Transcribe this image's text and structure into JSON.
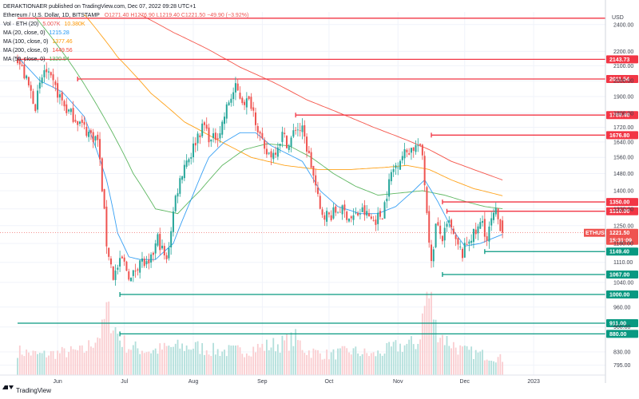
{
  "header": {
    "publisher_line": "DERAKTIONAER published on TradingView.com, Dec 07, 2022 09:28 UTC+1",
    "symbol_line": "Ethereum / U.S. Dollar, 1D, BITSTAMP",
    "ohlc": "O1271.40 H1276.90 L1219.40 C1221.50 −49.90 (−3.92%)",
    "indicators": [
      {
        "label": "Vol · ETH (20)",
        "value": "5.007K",
        "value2": "10.380K",
        "color": "#f7525f"
      },
      {
        "label": "MA (20, close, 0)",
        "value": "1215.28",
        "value2": "",
        "color": "#2196f3"
      },
      {
        "label": "MA (100, close, 0)",
        "value": "1377.46",
        "value2": "",
        "color": "#ff9800"
      },
      {
        "label": "MA (200, close, 0)",
        "value": "1449.56",
        "value2": "",
        "color": "#f44336"
      },
      {
        "label": "MA (50, close, 0)",
        "value": "1320.54",
        "value2": "",
        "color": "#4caf50"
      }
    ]
  },
  "currency": "USD",
  "footer": {
    "brand": "TradingView"
  },
  "colors": {
    "up": "#26a69a",
    "down": "#ef5350",
    "resistance": "#f23645",
    "support": "#089981",
    "ma20": "#2196f3",
    "ma50": "#4caf50",
    "ma100": "#ff9800",
    "ma200": "#f44336"
  },
  "chart_data": {
    "type": "candlestick",
    "symbol": "ETHUSD",
    "interval": "1D",
    "y_scale": "log",
    "ylim": [
      770,
      2500
    ],
    "price_ticks": [
      2400,
      2200,
      2100,
      2000,
      1900,
      1800,
      1720,
      1640,
      1560,
      1480,
      1400,
      1320,
      1250,
      1180,
      1110,
      1040,
      960,
      900,
      830,
      795
    ],
    "x_ticks": [
      {
        "label": "Jun",
        "day": 18
      },
      {
        "label": "Jul",
        "day": 48
      },
      {
        "label": "Aug",
        "day": 79
      },
      {
        "label": "Sep",
        "day": 110
      },
      {
        "label": "Oct",
        "day": 140
      },
      {
        "label": "Nov",
        "day": 171
      },
      {
        "label": "Dec",
        "day": 201
      },
      {
        "label": "2023",
        "day": 232
      }
    ],
    "levels": [
      {
        "value": 2450.0,
        "label": "",
        "kind": "resistance",
        "start_day": 0
      },
      {
        "value": 2143.73,
        "label": "2143.73",
        "kind": "resistance",
        "start_day": 0
      },
      {
        "value": 2011.54,
        "label": "2011.54",
        "kind": "resistance",
        "start_day": 27
      },
      {
        "value": 1789.4,
        "label": "1789.40",
        "kind": "resistance",
        "start_day": 125
      },
      {
        "value": 1676.8,
        "label": "1676.80",
        "kind": "resistance",
        "start_day": 186
      },
      {
        "value": 1350.0,
        "label": "1350.00",
        "kind": "resistance",
        "start_day": 191
      },
      {
        "value": 1310.0,
        "label": "1310.00",
        "kind": "resistance",
        "start_day": 193
      },
      {
        "value": 1149.4,
        "label": "1149.40",
        "kind": "support",
        "start_day": 210
      },
      {
        "value": 1067.0,
        "label": "1067.00",
        "kind": "support",
        "start_day": 191
      },
      {
        "value": 1000.0,
        "label": "1000.00",
        "kind": "support",
        "start_day": 46
      },
      {
        "value": 911.0,
        "label": "911.00",
        "kind": "support",
        "start_day": 0
      },
      {
        "value": 880.0,
        "label": "880.00",
        "kind": "support",
        "start_day": 46
      }
    ],
    "last_price": {
      "label": "ETHUSD",
      "value": "1221.50",
      "countdown": "15:31:09"
    },
    "price_anchors": [
      [
        0,
        2150
      ],
      [
        4,
        2000
      ],
      [
        8,
        1850
      ],
      [
        12,
        2070
      ],
      [
        17,
        1950
      ],
      [
        22,
        1820
      ],
      [
        27,
        1760
      ],
      [
        31,
        1700
      ],
      [
        36,
        1650
      ],
      [
        40,
        1180
      ],
      [
        43,
        1060
      ],
      [
        47,
        1120
      ],
      [
        51,
        1050
      ],
      [
        55,
        1120
      ],
      [
        59,
        1090
      ],
      [
        63,
        1200
      ],
      [
        67,
        1110
      ],
      [
        71,
        1370
      ],
      [
        75,
        1530
      ],
      [
        78,
        1580
      ],
      [
        81,
        1680
      ],
      [
        84,
        1730
      ],
      [
        87,
        1640
      ],
      [
        91,
        1700
      ],
      [
        95,
        1870
      ],
      [
        98,
        1950
      ],
      [
        101,
        1880
      ],
      [
        105,
        1860
      ],
      [
        108,
        1720
      ],
      [
        111,
        1580
      ],
      [
        115,
        1580
      ],
      [
        119,
        1680
      ],
      [
        122,
        1620
      ],
      [
        125,
        1720
      ],
      [
        128,
        1700
      ],
      [
        132,
        1520
      ],
      [
        136,
        1310
      ],
      [
        140,
        1290
      ],
      [
        145,
        1320
      ],
      [
        150,
        1280
      ],
      [
        155,
        1310
      ],
      [
        160,
        1270
      ],
      [
        164,
        1300
      ],
      [
        168,
        1480
      ],
      [
        172,
        1560
      ],
      [
        176,
        1600
      ],
      [
        180,
        1620
      ],
      [
        182,
        1570
      ],
      [
        184,
        1310
      ],
      [
        186,
        1100
      ],
      [
        188,
        1250
      ],
      [
        191,
        1200
      ],
      [
        194,
        1260
      ],
      [
        197,
        1180
      ],
      [
        200,
        1140
      ],
      [
        203,
        1200
      ],
      [
        206,
        1220
      ],
      [
        209,
        1270
      ],
      [
        211,
        1190
      ],
      [
        213,
        1270
      ],
      [
        215,
        1300
      ],
      [
        217,
        1250
      ],
      [
        218,
        1221.5
      ]
    ],
    "ma_values": {
      "ma20": [
        [
          0,
          2160
        ],
        [
          10,
          2000
        ],
        [
          20,
          1930
        ],
        [
          30,
          1780
        ],
        [
          40,
          1450
        ],
        [
          45,
          1220
        ],
        [
          50,
          1130
        ],
        [
          55,
          1120
        ],
        [
          62,
          1120
        ],
        [
          70,
          1180
        ],
        [
          78,
          1360
        ],
        [
          86,
          1560
        ],
        [
          93,
          1640
        ],
        [
          100,
          1690
        ],
        [
          107,
          1690
        ],
        [
          114,
          1620
        ],
        [
          121,
          1580
        ],
        [
          128,
          1540
        ],
        [
          136,
          1400
        ],
        [
          144,
          1330
        ],
        [
          154,
          1300
        ],
        [
          162,
          1300
        ],
        [
          170,
          1330
        ],
        [
          178,
          1400
        ],
        [
          183,
          1450
        ],
        [
          189,
          1350
        ],
        [
          195,
          1240
        ],
        [
          201,
          1170
        ],
        [
          208,
          1180
        ],
        [
          218,
          1215.28
        ]
      ],
      "ma50": [
        [
          8,
          2460
        ],
        [
          25,
          2090
        ],
        [
          40,
          1750
        ],
        [
          52,
          1480
        ],
        [
          62,
          1320
        ],
        [
          72,
          1300
        ],
        [
          82,
          1400
        ],
        [
          92,
          1520
        ],
        [
          102,
          1600
        ],
        [
          112,
          1630
        ],
        [
          122,
          1620
        ],
        [
          132,
          1560
        ],
        [
          142,
          1480
        ],
        [
          152,
          1420
        ],
        [
          162,
          1380
        ],
        [
          172,
          1390
        ],
        [
          182,
          1400
        ],
        [
          192,
          1380
        ],
        [
          202,
          1350
        ],
        [
          210,
          1330
        ],
        [
          218,
          1320.54
        ]
      ],
      "ma100": [
        [
          30,
          2480
        ],
        [
          45,
          2160
        ],
        [
          60,
          1920
        ],
        [
          75,
          1750
        ],
        [
          90,
          1650
        ],
        [
          105,
          1560
        ],
        [
          120,
          1520
        ],
        [
          135,
          1500
        ],
        [
          150,
          1500
        ],
        [
          165,
          1510
        ],
        [
          175,
          1520
        ],
        [
          185,
          1500
        ],
        [
          195,
          1450
        ],
        [
          205,
          1410
        ],
        [
          218,
          1377.46
        ]
      ],
      "ma200": [
        [
          55,
          2480
        ],
        [
          70,
          2340
        ],
        [
          85,
          2220
        ],
        [
          100,
          2090
        ],
        [
          115,
          1990
        ],
        [
          130,
          1880
        ],
        [
          145,
          1800
        ],
        [
          160,
          1720
        ],
        [
          175,
          1650
        ],
        [
          185,
          1600
        ],
        [
          195,
          1540
        ],
        [
          205,
          1500
        ],
        [
          218,
          1449.56
        ]
      ]
    },
    "volume_anchors": [
      [
        0,
        0.3
      ],
      [
        10,
        0.25
      ],
      [
        20,
        0.28
      ],
      [
        30,
        0.3
      ],
      [
        38,
        0.55
      ],
      [
        40,
        0.8
      ],
      [
        42,
        0.7
      ],
      [
        46,
        0.45
      ],
      [
        50,
        0.35
      ],
      [
        60,
        0.3
      ],
      [
        70,
        0.35
      ],
      [
        80,
        0.35
      ],
      [
        90,
        0.3
      ],
      [
        100,
        0.3
      ],
      [
        110,
        0.35
      ],
      [
        120,
        0.4
      ],
      [
        125,
        0.45
      ],
      [
        130,
        0.3
      ],
      [
        140,
        0.25
      ],
      [
        150,
        0.3
      ],
      [
        160,
        0.25
      ],
      [
        170,
        0.35
      ],
      [
        180,
        0.4
      ],
      [
        184,
        1.0
      ],
      [
        186,
        0.9
      ],
      [
        188,
        0.6
      ],
      [
        192,
        0.45
      ],
      [
        200,
        0.3
      ],
      [
        210,
        0.25
      ],
      [
        218,
        0.2
      ]
    ]
  }
}
